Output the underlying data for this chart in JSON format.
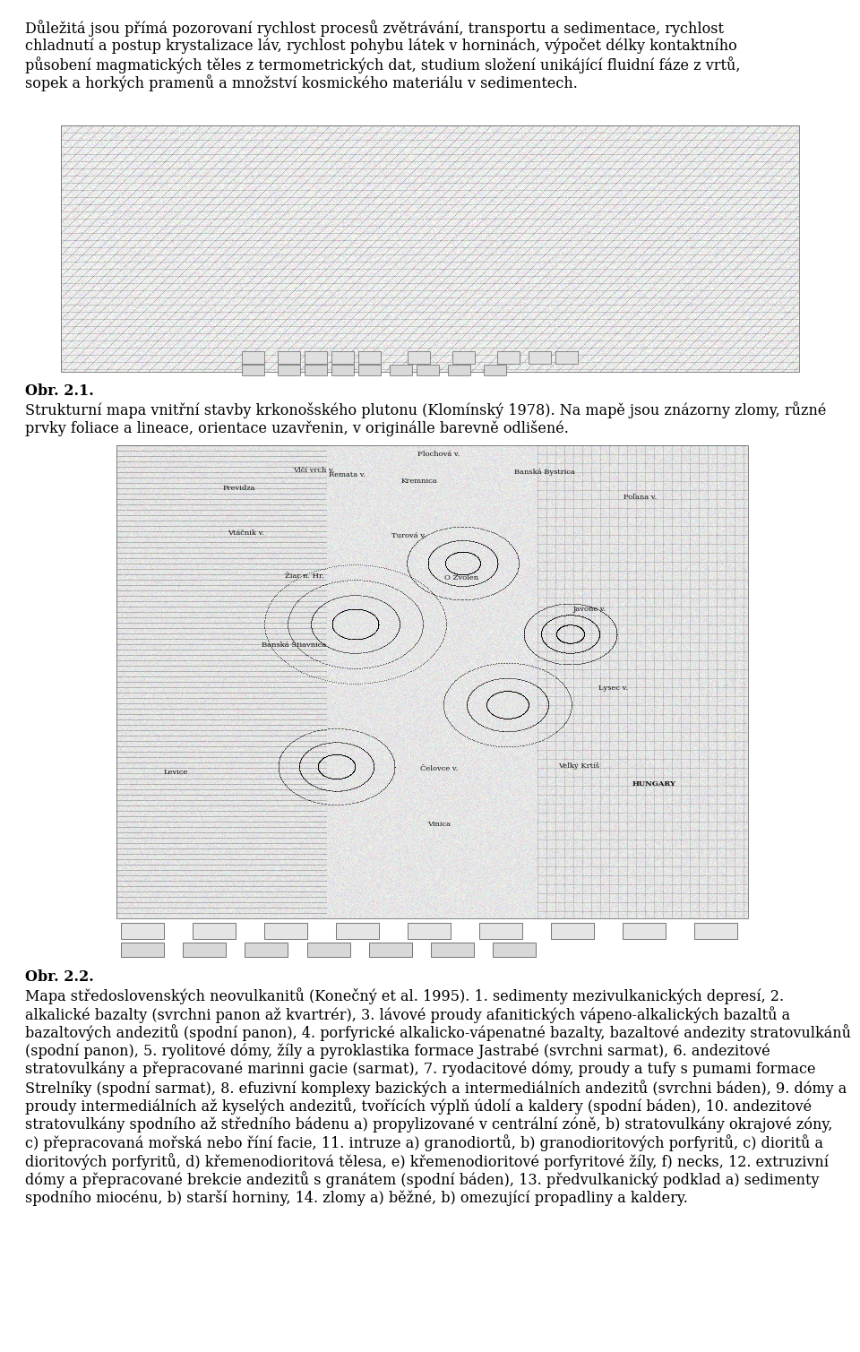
{
  "page_width": 9.6,
  "page_height": 15.09,
  "dpi": 100,
  "bg": "#ffffff",
  "text_color": "#000000",
  "para1_lines": [
    "Důležitá jsou přímá pozorovaní rychlost procesů zvětrávání, transportu a sedimentace, rychlost",
    "chladnutí a postup krystalizace láv, rychlost pohybu látek v horninách, výpočet délky kontaktního",
    "působení magmatických těles z termometrických dat, studium složení unikájící fluidní fáze z vrtů,",
    "sopek a horkých pramenů a množství kosmického materiálu v sedimentech."
  ],
  "obr21_bold": "Obr. 2.1.",
  "obr21_lines": [
    "Strukturní mapa vnitřní stavby krkonošského plutonu (Klomínský 1978). Na mapě jsou znázorny zlomy, různé",
    "prvky foliace a lineace, orientace uzavřenin, v originálle barevně odlišené."
  ],
  "obr22_bold": "Obr. 2.2.",
  "obr22_lines": [
    "Mapa středoslovenských neovulkanitů (Konečný et al. 1995). 1. sedimenty mezivulkanických depresí, 2.",
    "alkalické bazalty (svrchni panon až kvartrér), 3. lávové proudy afanitických vápeno-alkalických bazaltů a",
    "bazaltových andezitů (spodní panon), 4. porfyrické alkalicko-vápenatné bazalty, bazaltové andezity stratovulkánů",
    "(spodní panon), 5. ryolitové dómy, žíly a pyroklastika formace Jastrabé (svrchni sarmat), 6. andezitové",
    "stratovulkány a přepracované marinni gacie (sarmat), 7. ryodacitové dómy, proudy a tufy s pumami formace",
    "Strelníky (spodní sarmat), 8. efuzivní komplexy bazických a intermediálních andezitů (svrchni báden), 9. dómy a",
    "proudy intermediálních až kyselých andezitů, tvořících výplň údolí a kaldery (spodní báden), 10. andezitové",
    "stratovulkány spodního až středního bádenu a) propylizované v centrální zóně, b) stratovulkány okrajové zóny,",
    "c) přepracovaná mořská nebo říní facie, 11. intruze a) granodiortů, b) granodioritových porfyritů, c) dioritů a",
    "dioritových porfyritů, d) křemenodioritová tělesa, e) křemenodioritové porfyritové žíly, f) necks, 12. extruzivní",
    "dómy a přepracované brekcie andezitů s granátem (spodní báden), 13. předvulkanický podklad a) sedimenty",
    "spodního miocénu, b) starší horniny, 14. zlomy a) běžné, b) omezující propadliny a kaldery."
  ],
  "fs_body": 11.5,
  "fs_caption": 11.5,
  "lh": 20.5
}
